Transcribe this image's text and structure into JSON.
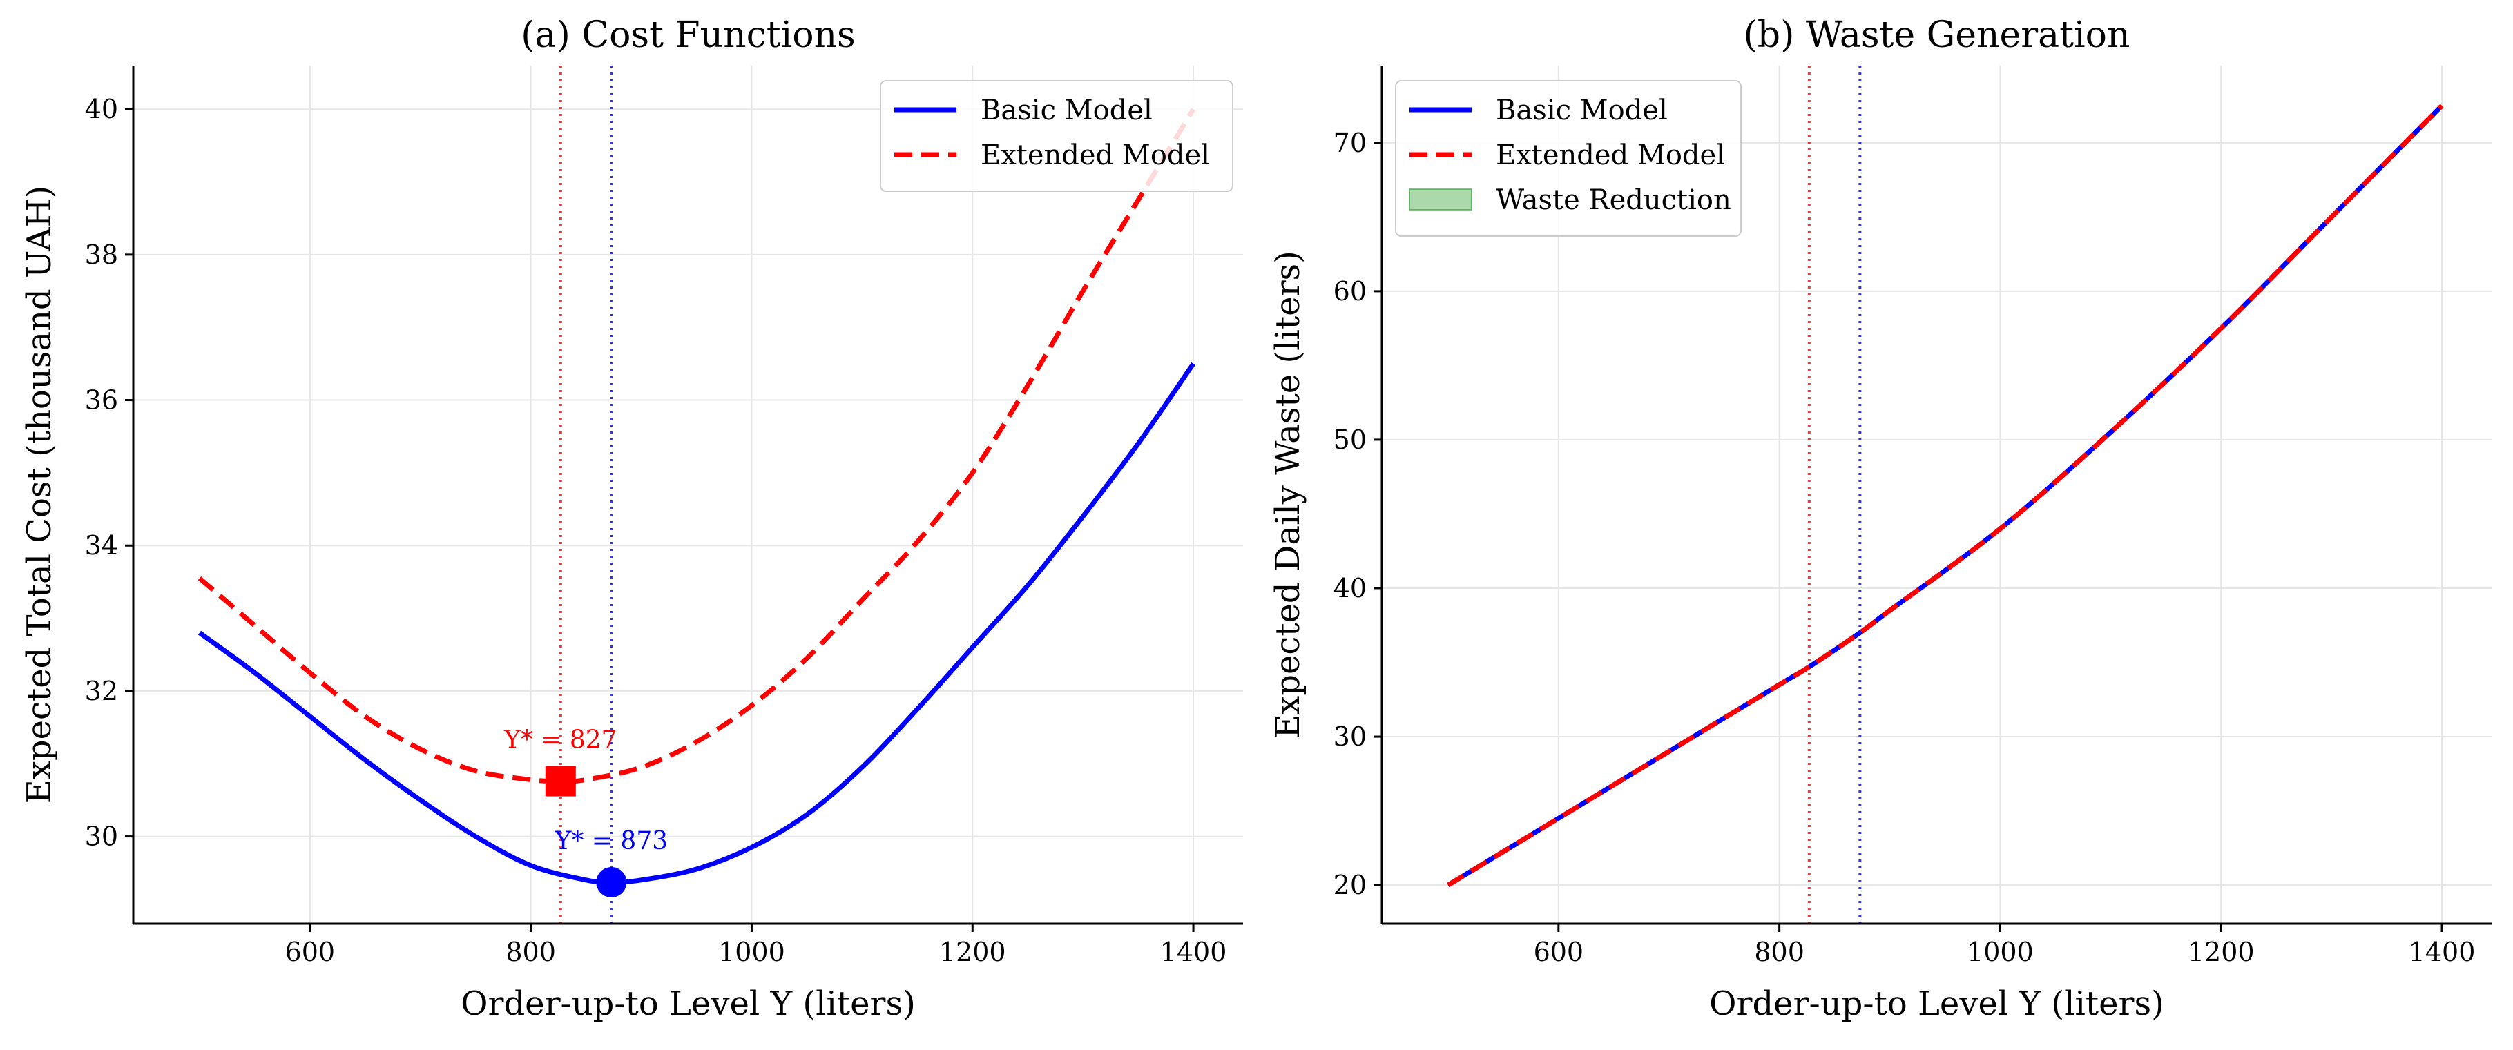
{
  "chart_data": [
    {
      "type": "line",
      "title": "(a) Cost Functions",
      "xlabel": "Order-up-to Level Y (liters)",
      "ylabel": "Expected Total Cost (thousand UAH)",
      "xlim": [
        440,
        1445
      ],
      "ylim": [
        28.8,
        40.6
      ],
      "xticks": [
        600,
        800,
        1000,
        1200,
        1400
      ],
      "yticks": [
        30,
        32,
        34,
        36,
        38,
        40
      ],
      "grid": true,
      "legend_position": "top-right",
      "series": [
        {
          "name": "Basic Model",
          "color": "#0000ff",
          "style": "solid",
          "x": [
            500,
            550,
            600,
            650,
            700,
            750,
            800,
            850,
            873,
            900,
            950,
            1000,
            1050,
            1100,
            1150,
            1200,
            1250,
            1300,
            1350,
            1400
          ],
          "y": [
            32.8,
            32.25,
            31.65,
            31.05,
            30.5,
            30.0,
            29.6,
            29.4,
            29.37,
            29.4,
            29.55,
            29.85,
            30.3,
            30.95,
            31.75,
            32.6,
            33.45,
            34.4,
            35.4,
            36.5
          ]
        },
        {
          "name": "Extended Model",
          "color": "#ff0000",
          "style": "dashed",
          "x": [
            500,
            550,
            600,
            650,
            700,
            750,
            800,
            827,
            850,
            900,
            950,
            1000,
            1050,
            1100,
            1150,
            1200,
            1250,
            1300,
            1350,
            1400
          ],
          "y": [
            33.55,
            32.9,
            32.25,
            31.65,
            31.2,
            30.9,
            30.78,
            30.76,
            30.78,
            30.95,
            31.3,
            31.8,
            32.45,
            33.25,
            34.05,
            35.0,
            36.2,
            37.5,
            38.75,
            40.0
          ]
        }
      ],
      "optima": [
        {
          "label": "Y* = 873",
          "x": 873,
          "y": 29.37,
          "color": "#0000ff",
          "marker": "circle"
        },
        {
          "label": "Y* = 827",
          "x": 827,
          "y": 30.76,
          "color": "#ff0000",
          "marker": "square"
        }
      ]
    },
    {
      "type": "line",
      "title": "(b) Waste Generation",
      "xlabel": "Order-up-to Level Y (liters)",
      "ylabel": "Expected Daily Waste (liters)",
      "xlim": [
        440,
        1445
      ],
      "ylim": [
        17.4,
        75.2
      ],
      "xticks": [
        600,
        800,
        1000,
        1200,
        1400
      ],
      "yticks": [
        20,
        30,
        40,
        50,
        60,
        70
      ],
      "grid": true,
      "legend_position": "top-left",
      "series": [
        {
          "name": "Basic Model",
          "color": "#0000ff",
          "style": "solid",
          "x": [
            500,
            600,
            700,
            800,
            827,
            873,
            900,
            1000,
            1100,
            1200,
            1300,
            1400
          ],
          "y": [
            20.0,
            24.5,
            29.0,
            33.5,
            34.7,
            37.0,
            38.5,
            44.0,
            50.5,
            57.5,
            65.0,
            72.5
          ]
        },
        {
          "name": "Extended Model",
          "color": "#ff0000",
          "style": "dashed",
          "x": [
            500,
            600,
            700,
            800,
            827,
            873,
            900,
            1000,
            1100,
            1200,
            1300,
            1400
          ],
          "y": [
            20.0,
            24.5,
            29.0,
            33.5,
            34.7,
            37.0,
            38.5,
            44.0,
            50.5,
            57.5,
            65.0,
            72.5
          ]
        },
        {
          "name": "Waste Reduction",
          "color": "#2ca02c",
          "style": "fill"
        }
      ],
      "vlines": [
        {
          "x": 827,
          "color": "#ff0000"
        },
        {
          "x": 873,
          "color": "#0000ff"
        }
      ]
    }
  ]
}
